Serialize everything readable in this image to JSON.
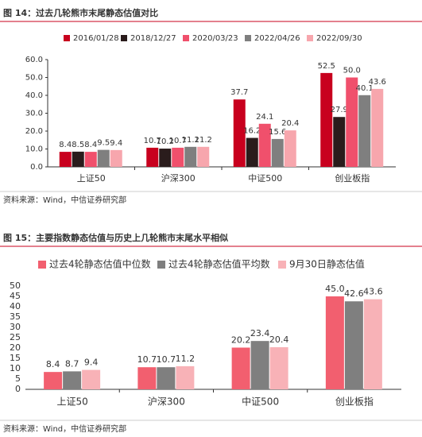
{
  "chart_data": [
    {
      "type": "bar",
      "title": "图 14：过去几轮熊市末尾静态估值对比",
      "source": "资料来源：Wind，中信证券研究部",
      "categories": [
        "上证50",
        "沪深300",
        "中证500",
        "创业板指"
      ],
      "series": [
        {
          "name": "2016/01/28",
          "color": "#c8001e",
          "values": [
            8.4,
            10.7,
            37.7,
            52.5
          ]
        },
        {
          "name": "2018/12/27",
          "color": "#2a1c1c",
          "values": [
            8.5,
            10.2,
            16.2,
            27.9
          ]
        },
        {
          "name": "2020/03/23",
          "color": "#f0506c",
          "values": [
            8.4,
            10.7,
            24.1,
            50.0
          ],
          "value_labels": [
            "8.4",
            "10.7",
            "24.1",
            "50.0"
          ]
        },
        {
          "name": "2022/04/26",
          "color": "#7f7f7f",
          "values": [
            9.5,
            11.2,
            15.6,
            40.1
          ]
        },
        {
          "name": "2022/09/30",
          "color": "#f7a6ad",
          "values": [
            9.4,
            11.2,
            20.4,
            43.6
          ]
        }
      ],
      "ylim": [
        0,
        60
      ],
      "yticks": [
        {
          "value": 0,
          "label": "0.0"
        },
        {
          "value": 10,
          "label": "10.0"
        },
        {
          "value": 20,
          "label": "20.0"
        },
        {
          "value": 30,
          "label": "30.0"
        },
        {
          "value": 40,
          "label": "40.0"
        },
        {
          "value": 50,
          "label": "50.0"
        },
        {
          "value": 60,
          "label": "60.0"
        }
      ]
    },
    {
      "type": "bar",
      "title": "图 15：主要指数静态估值与历史上几轮熊市末尾水平相似",
      "source": "资料来源：Wind，中信证券研究部",
      "categories": [
        "上证50",
        "沪深300",
        "中证500",
        "创业板指"
      ],
      "series": [
        {
          "name": "过去4轮静态估值中位数",
          "color": "#f25f6f",
          "values": [
            8.4,
            10.7,
            20.2,
            45.0
          ],
          "value_labels": [
            "8.4",
            "10.7",
            "20.2",
            "45.0"
          ]
        },
        {
          "name": "过去4轮静态估值平均数",
          "color": "#7f7f7f",
          "values": [
            8.7,
            10.7,
            23.4,
            42.6
          ]
        },
        {
          "name": "9月30日静态估值",
          "color": "#f8b2b7",
          "values": [
            9.4,
            11.2,
            20.4,
            43.6
          ]
        }
      ],
      "ylim": [
        0,
        50
      ],
      "yticks": [
        0,
        5,
        10,
        15,
        20,
        25,
        30,
        35,
        40,
        45,
        50
      ]
    }
  ]
}
